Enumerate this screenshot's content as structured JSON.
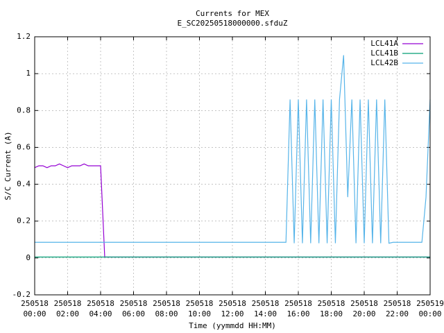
{
  "chart_data": {
    "type": "line",
    "title": "Currents for MEX",
    "subtitle": "E_SC20250518000000.sfduZ",
    "xlabel": "Time (yymmdd HH:MM)",
    "ylabel": "S/C Current (A)",
    "xlim": [
      0,
      24
    ],
    "ylim": [
      -0.2,
      1.2
    ],
    "yticks": [
      -0.2,
      0,
      0.2,
      0.4,
      0.6,
      0.8,
      1,
      1.2
    ],
    "xticks": [
      {
        "value": 0,
        "label": [
          "250518",
          "00:00"
        ]
      },
      {
        "value": 2,
        "label": [
          "250518",
          "02:00"
        ]
      },
      {
        "value": 4,
        "label": [
          "250518",
          "04:00"
        ]
      },
      {
        "value": 6,
        "label": [
          "250518",
          "06:00"
        ]
      },
      {
        "value": 8,
        "label": [
          "250518",
          "08:00"
        ]
      },
      {
        "value": 10,
        "label": [
          "250518",
          "10:00"
        ]
      },
      {
        "value": 12,
        "label": [
          "250518",
          "12:00"
        ]
      },
      {
        "value": 14,
        "label": [
          "250518",
          "14:00"
        ]
      },
      {
        "value": 16,
        "label": [
          "250518",
          "16:00"
        ]
      },
      {
        "value": 18,
        "label": [
          "250518",
          "18:00"
        ]
      },
      {
        "value": 20,
        "label": [
          "250518",
          "20:00"
        ]
      },
      {
        "value": 22,
        "label": [
          "250518",
          "22:00"
        ]
      },
      {
        "value": 24,
        "label": [
          "250519",
          "00:00"
        ]
      }
    ],
    "grid": true,
    "legend": "top-right",
    "x": [
      0,
      0.25,
      0.5,
      0.75,
      1,
      1.25,
      1.5,
      1.75,
      2,
      2.25,
      2.5,
      2.75,
      3,
      3.25,
      3.5,
      3.75,
      4,
      4.25,
      4.5,
      4.75,
      5,
      5.25,
      5.5,
      5.75,
      6,
      6.25,
      6.5,
      6.75,
      7,
      7.25,
      7.5,
      7.75,
      8,
      8.25,
      8.5,
      8.75,
      9,
      9.25,
      9.5,
      9.75,
      10,
      10.25,
      10.5,
      10.75,
      11,
      11.25,
      11.5,
      11.75,
      12,
      12.25,
      12.5,
      12.75,
      13,
      13.25,
      13.5,
      13.75,
      14,
      14.25,
      14.5,
      14.75,
      15,
      15.25,
      15.5,
      15.75,
      16,
      16.25,
      16.5,
      16.75,
      17,
      17.25,
      17.5,
      17.75,
      18,
      18.25,
      18.5,
      18.75,
      19,
      19.25,
      19.5,
      19.75,
      20,
      20.25,
      20.5,
      20.75,
      21,
      21.25,
      21.5,
      21.75,
      22,
      22.25,
      22.5,
      22.75,
      23,
      23.25,
      23.5,
      23.75,
      24
    ],
    "series": [
      {
        "name": "LCL41A",
        "color": "#9400d3",
        "values": [
          0.49,
          0.5,
          0.5,
          0.49,
          0.5,
          0.5,
          0.51,
          0.5,
          0.49,
          0.5,
          0.5,
          0.5,
          0.51,
          0.5,
          0.5,
          0.5,
          0.5,
          0.005,
          0.005,
          0.005,
          0.005,
          0.005,
          0.005,
          0.005,
          0.005,
          0.005,
          0.005,
          0.005,
          0.005,
          0.005,
          0.005,
          0.005,
          0.005,
          0.005,
          0.005,
          0.005,
          0.005,
          0.005,
          0.005,
          0.005,
          0.005,
          0.005,
          0.005,
          0.005,
          0.005,
          0.005,
          0.005,
          0.005,
          0.005,
          0.005,
          0.005,
          0.005,
          0.005,
          0.005,
          0.005,
          0.005,
          0.005,
          0.005,
          0.005,
          0.005,
          0.005,
          0.005,
          0.005,
          0.005,
          0.005,
          0.005,
          0.005,
          0.005,
          0.005,
          0.005,
          0.005,
          0.005,
          0.005,
          0.005,
          0.005,
          0.005,
          0.005,
          0.005,
          0.005,
          0.005,
          0.005,
          0.005,
          0.005,
          0.005,
          0.005,
          0.005,
          0.005,
          0.005,
          0.005,
          0.005,
          0.005,
          0.005,
          0.005,
          0.005,
          0.005,
          0.005,
          0.005
        ]
      },
      {
        "name": "LCL41B",
        "color": "#009e73",
        "values": [
          0.005,
          0.005,
          0.005,
          0.005,
          0.005,
          0.005,
          0.005,
          0.005,
          0.005,
          0.005,
          0.005,
          0.005,
          0.005,
          0.005,
          0.005,
          0.005,
          0.005,
          0.005,
          0.005,
          0.005,
          0.005,
          0.005,
          0.005,
          0.005,
          0.005,
          0.005,
          0.005,
          0.005,
          0.005,
          0.005,
          0.005,
          0.005,
          0.005,
          0.005,
          0.005,
          0.005,
          0.005,
          0.005,
          0.005,
          0.005,
          0.005,
          0.005,
          0.005,
          0.005,
          0.005,
          0.005,
          0.005,
          0.005,
          0.005,
          0.005,
          0.005,
          0.005,
          0.005,
          0.005,
          0.005,
          0.005,
          0.005,
          0.005,
          0.005,
          0.005,
          0.005,
          0.005,
          0.005,
          0.005,
          0.005,
          0.005,
          0.005,
          0.005,
          0.005,
          0.005,
          0.005,
          0.005,
          0.005,
          0.005,
          0.005,
          0.005,
          0.005,
          0.005,
          0.005,
          0.005,
          0.005,
          0.005,
          0.005,
          0.005,
          0.005,
          0.005,
          0.005,
          0.005,
          0.005,
          0.005,
          0.005,
          0.005,
          0.005,
          0.005,
          0.005,
          0.005,
          0.005
        ]
      },
      {
        "name": "LCL42B",
        "color": "#56b4e9",
        "values": [
          0.085,
          0.085,
          0.085,
          0.085,
          0.085,
          0.085,
          0.085,
          0.085,
          0.085,
          0.085,
          0.085,
          0.085,
          0.085,
          0.085,
          0.085,
          0.085,
          0.085,
          0.085,
          0.085,
          0.085,
          0.085,
          0.085,
          0.085,
          0.085,
          0.085,
          0.085,
          0.085,
          0.085,
          0.085,
          0.085,
          0.085,
          0.085,
          0.085,
          0.085,
          0.085,
          0.085,
          0.085,
          0.085,
          0.085,
          0.085,
          0.085,
          0.085,
          0.085,
          0.085,
          0.085,
          0.085,
          0.085,
          0.085,
          0.085,
          0.085,
          0.085,
          0.085,
          0.085,
          0.085,
          0.085,
          0.085,
          0.085,
          0.085,
          0.085,
          0.085,
          0.085,
          0.085,
          0.86,
          0.08,
          0.86,
          0.08,
          0.86,
          0.08,
          0.86,
          0.08,
          0.86,
          0.08,
          0.86,
          0.08,
          0.86,
          1.1,
          0.33,
          0.86,
          0.08,
          0.86,
          0.08,
          0.86,
          0.08,
          0.86,
          0.08,
          0.86,
          0.08,
          0.085,
          0.085,
          0.085,
          0.085,
          0.085,
          0.085,
          0.085,
          0.085,
          0.33,
          0.86
        ]
      }
    ]
  }
}
